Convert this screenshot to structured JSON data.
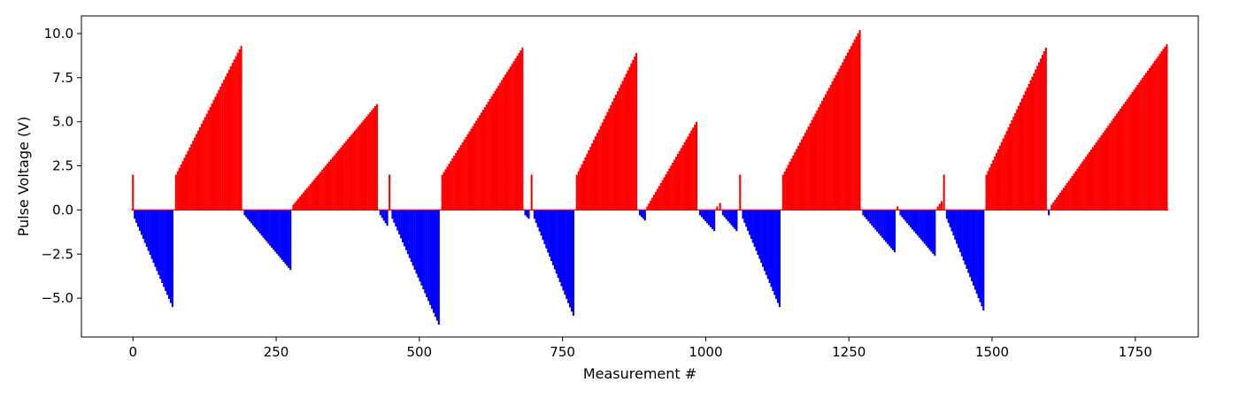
{
  "chart_data": {
    "type": "bar",
    "title": "",
    "xlabel": "Measurement #",
    "ylabel": "Pulse Voltage (V)",
    "xlim": [
      -90,
      1860
    ],
    "ylim": [
      -7.2,
      11.0
    ],
    "xticks": [
      0,
      250,
      500,
      750,
      1000,
      1250,
      1500,
      1750
    ],
    "yticks": [
      -5.0,
      -2.5,
      0.0,
      2.5,
      5.0,
      7.5,
      10.0
    ],
    "x_tick_labels": [
      "0",
      "250",
      "500",
      "750",
      "1000",
      "1250",
      "1500",
      "1750"
    ],
    "y_tick_labels": [
      "−5.0",
      "−2.5",
      "0.0",
      "2.5",
      "5.0",
      "7.5",
      "10.0"
    ],
    "grid": false,
    "colors": {
      "positive": "#ff0000",
      "negative": "#0000ff",
      "axes": "#000000",
      "background": "#ffffff"
    },
    "segments": [
      {
        "sign": "positive",
        "x_start": 0,
        "x_end": 0,
        "y_start": 2.0,
        "y_end": 2.0,
        "count": 1
      },
      {
        "sign": "negative",
        "x_start": 3,
        "x_end": 69,
        "y_start": -0.5,
        "y_end": -5.5,
        "count": 23
      },
      {
        "sign": "positive",
        "x_start": 75,
        "x_end": 189,
        "y_start": 2.0,
        "y_end": 9.3,
        "count": 39
      },
      {
        "sign": "negative",
        "x_start": 195,
        "x_end": 275,
        "y_start": -0.3,
        "y_end": -3.4,
        "count": 28
      },
      {
        "sign": "positive",
        "x_start": 280,
        "x_end": 426,
        "y_start": 0.3,
        "y_end": 6.0,
        "count": 50
      },
      {
        "sign": "negative",
        "x_start": 432,
        "x_end": 444,
        "y_start": -0.3,
        "y_end": -0.9,
        "count": 5
      },
      {
        "sign": "positive",
        "x_start": 448,
        "x_end": 448,
        "y_start": 2.0,
        "y_end": 2.0,
        "count": 1
      },
      {
        "sign": "negative",
        "x_start": 453,
        "x_end": 534,
        "y_start": -0.5,
        "y_end": -6.5,
        "count": 28
      },
      {
        "sign": "positive",
        "x_start": 540,
        "x_end": 680,
        "y_start": 2.0,
        "y_end": 9.2,
        "count": 48
      },
      {
        "sign": "negative",
        "x_start": 685,
        "x_end": 691,
        "y_start": -0.3,
        "y_end": -0.5,
        "count": 3
      },
      {
        "sign": "positive",
        "x_start": 696,
        "x_end": 696,
        "y_start": 2.0,
        "y_end": 2.0,
        "count": 1
      },
      {
        "sign": "negative",
        "x_start": 701,
        "x_end": 769,
        "y_start": -0.5,
        "y_end": -6.0,
        "count": 24
      },
      {
        "sign": "positive",
        "x_start": 775,
        "x_end": 879,
        "y_start": 2.0,
        "y_end": 8.9,
        "count": 36
      },
      {
        "sign": "negative",
        "x_start": 885,
        "x_end": 894,
        "y_start": -0.3,
        "y_end": -0.6,
        "count": 4
      },
      {
        "sign": "positive",
        "x_start": 898,
        "x_end": 984,
        "y_start": 0.2,
        "y_end": 5.0,
        "count": 30
      },
      {
        "sign": "negative",
        "x_start": 990,
        "x_end": 1015,
        "y_start": -0.3,
        "y_end": -1.2,
        "count": 9
      },
      {
        "sign": "positive",
        "x_start": 1020,
        "x_end": 1025,
        "y_start": 0.2,
        "y_end": 0.4,
        "count": 2
      },
      {
        "sign": "negative",
        "x_start": 1030,
        "x_end": 1054,
        "y_start": -0.3,
        "y_end": -1.2,
        "count": 9
      },
      {
        "sign": "positive",
        "x_start": 1060,
        "x_end": 1060,
        "y_start": 2.0,
        "y_end": 2.0,
        "count": 1
      },
      {
        "sign": "negative",
        "x_start": 1065,
        "x_end": 1129,
        "y_start": -0.5,
        "y_end": -5.5,
        "count": 23
      },
      {
        "sign": "positive",
        "x_start": 1135,
        "x_end": 1269,
        "y_start": 2.0,
        "y_end": 10.2,
        "count": 46
      },
      {
        "sign": "negative",
        "x_start": 1275,
        "x_end": 1330,
        "y_start": -0.3,
        "y_end": -2.4,
        "count": 19
      },
      {
        "sign": "positive",
        "x_start": 1335,
        "x_end": 1335,
        "y_start": 0.2,
        "y_end": 0.2,
        "count": 1
      },
      {
        "sign": "negative",
        "x_start": 1340,
        "x_end": 1400,
        "y_start": -0.3,
        "y_end": -2.6,
        "count": 21
      },
      {
        "sign": "positive",
        "x_start": 1405,
        "x_end": 1412,
        "y_start": 0.2,
        "y_end": 0.5,
        "count": 3
      },
      {
        "sign": "positive",
        "x_start": 1416,
        "x_end": 1416,
        "y_start": 2.0,
        "y_end": 2.0,
        "count": 1
      },
      {
        "sign": "negative",
        "x_start": 1421,
        "x_end": 1485,
        "y_start": -0.5,
        "y_end": -5.7,
        "count": 23
      },
      {
        "sign": "positive",
        "x_start": 1490,
        "x_end": 1594,
        "y_start": 2.0,
        "y_end": 9.2,
        "count": 36
      },
      {
        "sign": "negative",
        "x_start": 1599,
        "x_end": 1599,
        "y_start": -0.3,
        "y_end": -0.3,
        "count": 1
      },
      {
        "sign": "positive",
        "x_start": 1604,
        "x_end": 1805,
        "y_start": 0.3,
        "y_end": 9.4,
        "count": 68
      }
    ]
  }
}
